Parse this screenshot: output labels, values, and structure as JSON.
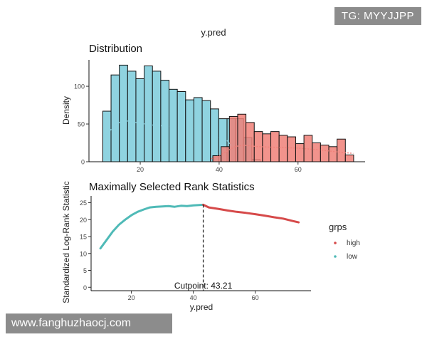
{
  "figure": {
    "title": "y.pred",
    "xlabel": "y.pred"
  },
  "chart_data": [
    {
      "type": "bar",
      "title": "Distribution",
      "xlabel": "",
      "ylabel": "Density",
      "xlim": [
        7,
        77
      ],
      "ylim": [
        0,
        135
      ],
      "xticks": [
        20,
        40,
        60
      ],
      "yticks": [
        0,
        50,
        100
      ],
      "bin_width": 2.1,
      "series": [
        {
          "name": "low",
          "color": "#8fd3e0",
          "bins_start": 10.5,
          "values": [
            67,
            115,
            128,
            120,
            110,
            127,
            120,
            108,
            96,
            93,
            82,
            85,
            81,
            70,
            57,
            57,
            57,
            32,
            3
          ],
          "density_curve": {
            "x": [
              11,
              13,
              15,
              17,
              20,
              24,
              28,
              32,
              36,
              40,
              42,
              43
            ],
            "y": [
              33,
              45,
              53,
              54,
              51,
              48,
              47,
              45,
              40,
              33,
              28,
              22
            ]
          }
        },
        {
          "name": "high",
          "color": "#f08078",
          "bins_start": 38.4,
          "values": [
            8,
            20,
            60,
            63,
            52,
            40,
            37,
            40,
            35,
            33,
            24,
            35,
            25,
            22,
            20,
            30,
            9
          ],
          "density_curve": {
            "x": [
              38,
              40,
              42,
              44,
              46,
              50,
              55,
              60,
              65,
              70,
              74
            ],
            "y": [
              4,
              8,
              14,
              20,
              22,
              20,
              19,
              18,
              16,
              13,
              11
            ]
          }
        }
      ]
    },
    {
      "type": "line",
      "title": "Maximally Selected Rank Statistics",
      "xlabel": "y.pred",
      "ylabel": "Standardized Log-Rank Statistic",
      "xlim": [
        7,
        78
      ],
      "ylim": [
        -1,
        27
      ],
      "xticks": [
        20,
        40,
        60
      ],
      "yticks": [
        0,
        5,
        10,
        15,
        20,
        25
      ],
      "cutpoint": 43.21,
      "cutpoint_label": "Cutpoint: 43.21",
      "legend_title": "grps",
      "legend_position": "right",
      "series": [
        {
          "name": "low",
          "color": "#4fbab7",
          "x": [
            10,
            12,
            14,
            16,
            18,
            20,
            22,
            24,
            26,
            28,
            30,
            32,
            34,
            36,
            38,
            40,
            42,
            43.21
          ],
          "y": [
            11.5,
            14,
            16.5,
            18.5,
            20,
            21.3,
            22.3,
            23,
            23.6,
            23.8,
            23.9,
            24,
            23.8,
            24.1,
            24,
            24.2,
            24.3,
            24.4
          ]
        },
        {
          "name": "high",
          "color": "#d64a4a",
          "x": [
            43.21,
            45,
            48,
            51,
            54,
            57,
            60,
            63,
            66,
            69,
            72,
            74
          ],
          "y": [
            24.4,
            23.6,
            23.2,
            22.7,
            22.3,
            22,
            21.6,
            21.2,
            20.7,
            20.3,
            19.6,
            19.2
          ]
        }
      ]
    }
  ],
  "watermarks": {
    "top_right": "TG: MYYJJPP",
    "bottom_left": "www.fanghuzhaocj.com"
  }
}
